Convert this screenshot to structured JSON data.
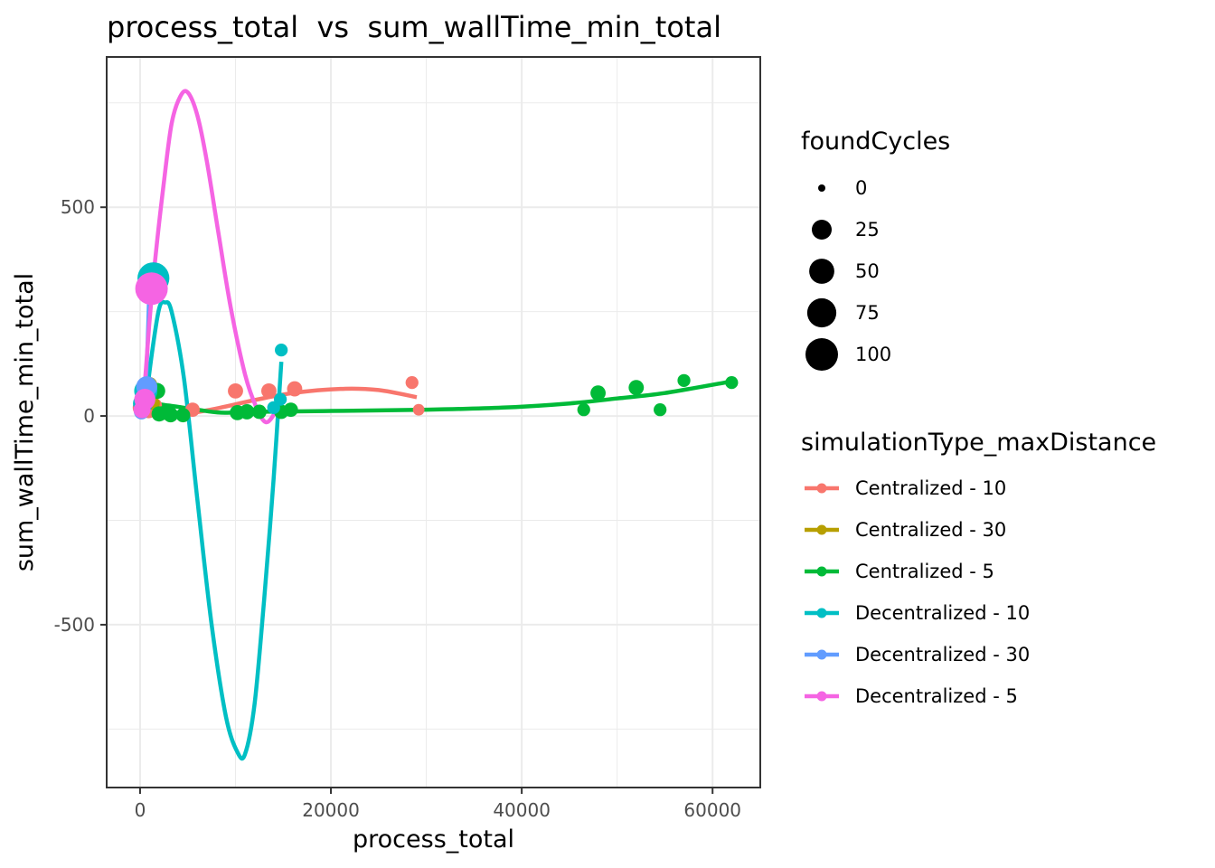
{
  "chart_data": {
    "type": "scatter",
    "title": "process_total  vs  sum_wallTime_min_total",
    "xlabel": "process_total",
    "ylabel": "sum_wallTime_min_total",
    "xlim": [
      -3500,
      65000
    ],
    "ylim": [
      -890,
      860
    ],
    "x_ticks": [
      0,
      20000,
      40000,
      60000
    ],
    "x_tick_labels": [
      "0",
      "20000",
      "40000",
      "60000"
    ],
    "y_ticks": [
      -500,
      0,
      500
    ],
    "y_tick_labels": [
      "-500",
      "0",
      "500"
    ],
    "grid": true,
    "legend_placement": "right",
    "size_legend": {
      "title": "foundCycles",
      "entries": [
        {
          "label": "0",
          "value": 0
        },
        {
          "label": "25",
          "value": 25
        },
        {
          "label": "50",
          "value": 50
        },
        {
          "label": "75",
          "value": 75
        },
        {
          "label": "100",
          "value": 100
        }
      ]
    },
    "color_legend_title": "simulationType_maxDistance",
    "series": [
      {
        "name": "Centralized - 10",
        "color": "#F8766D",
        "points": [
          {
            "x": 200,
            "y": 20,
            "size": 20
          },
          {
            "x": 500,
            "y": 30,
            "size": 35
          },
          {
            "x": 900,
            "y": 15,
            "size": 15
          },
          {
            "x": 1500,
            "y": 25,
            "size": 10
          },
          {
            "x": 5500,
            "y": 15,
            "size": 8
          },
          {
            "x": 10000,
            "y": 60,
            "size": 10
          },
          {
            "x": 13500,
            "y": 60,
            "size": 10
          },
          {
            "x": 16200,
            "y": 65,
            "size": 10
          },
          {
            "x": 28500,
            "y": 80,
            "size": 5
          },
          {
            "x": 29200,
            "y": 15,
            "size": 3
          }
        ],
        "curve": [
          [
            0,
            30
          ],
          [
            2000,
            15
          ],
          [
            4500,
            5
          ],
          [
            8000,
            18
          ],
          [
            12000,
            38
          ],
          [
            16000,
            55
          ],
          [
            21000,
            65
          ],
          [
            25000,
            62
          ],
          [
            29000,
            45
          ]
        ]
      },
      {
        "name": "Centralized - 30",
        "color": "#B79F00",
        "points": [
          {
            "x": 300,
            "y": 40,
            "size": 15
          },
          {
            "x": 700,
            "y": 60,
            "size": 20
          },
          {
            "x": 1000,
            "y": 75,
            "size": 10
          },
          {
            "x": 1400,
            "y": 30,
            "size": 5
          }
        ],
        "curve": [
          [
            100,
            50
          ],
          [
            400,
            55
          ],
          [
            800,
            60
          ],
          [
            1200,
            50
          ],
          [
            1500,
            35
          ]
        ]
      },
      {
        "name": "Centralized - 5",
        "color": "#00BA38",
        "points": [
          {
            "x": 1800,
            "y": 60,
            "size": 12
          },
          {
            "x": 2000,
            "y": 5,
            "size": 10
          },
          {
            "x": 2600,
            "y": 8,
            "size": 8
          },
          {
            "x": 3200,
            "y": 3,
            "size": 10
          },
          {
            "x": 4500,
            "y": 2,
            "size": 8
          },
          {
            "x": 10200,
            "y": 8,
            "size": 10
          },
          {
            "x": 11200,
            "y": 10,
            "size": 10
          },
          {
            "x": 12500,
            "y": 10,
            "size": 8
          },
          {
            "x": 14800,
            "y": 10,
            "size": 8
          },
          {
            "x": 15800,
            "y": 15,
            "size": 8
          },
          {
            "x": 46500,
            "y": 15,
            "size": 5
          },
          {
            "x": 48000,
            "y": 55,
            "size": 10
          },
          {
            "x": 52000,
            "y": 68,
            "size": 10
          },
          {
            "x": 54500,
            "y": 15,
            "size": 5
          },
          {
            "x": 57000,
            "y": 85,
            "size": 5
          },
          {
            "x": 62000,
            "y": 80,
            "size": 5
          }
        ],
        "curve": [
          [
            500,
            20
          ],
          [
            1500,
            28
          ],
          [
            3000,
            25
          ],
          [
            6000,
            15
          ],
          [
            8500,
            8
          ],
          [
            12000,
            10
          ],
          [
            20000,
            12
          ],
          [
            30000,
            15
          ],
          [
            38000,
            20
          ],
          [
            45000,
            30
          ],
          [
            50000,
            42
          ],
          [
            55000,
            55
          ],
          [
            62000,
            83
          ]
        ]
      },
      {
        "name": "Decentralized - 10",
        "color": "#00BFC4",
        "points": [
          {
            "x": 1400,
            "y": 330,
            "size": 95
          },
          {
            "x": 600,
            "y": 60,
            "size": 40
          },
          {
            "x": 300,
            "y": 30,
            "size": 25
          },
          {
            "x": 14700,
            "y": 40,
            "size": 5
          },
          {
            "x": 14800,
            "y": 158,
            "size": 5
          },
          {
            "x": 14000,
            "y": 20,
            "size": 5
          }
        ],
        "curve": [
          [
            600,
            35
          ],
          [
            1300,
            160
          ],
          [
            2000,
            258
          ],
          [
            2600,
            272
          ],
          [
            3300,
            250
          ],
          [
            4600,
            90
          ],
          [
            6000,
            -200
          ],
          [
            7500,
            -500
          ],
          [
            9000,
            -720
          ],
          [
            10200,
            -805
          ],
          [
            11000,
            -810
          ],
          [
            12000,
            -690
          ],
          [
            13000,
            -440
          ],
          [
            14000,
            -150
          ],
          [
            14800,
            130
          ]
        ]
      },
      {
        "name": "Decentralized - 30",
        "color": "#619CFF",
        "points": [
          {
            "x": 700,
            "y": 70,
            "size": 30
          },
          {
            "x": 400,
            "y": 40,
            "size": 20
          },
          {
            "x": 150,
            "y": 10,
            "size": 10
          }
        ],
        "curve": [
          [
            150,
            10
          ],
          [
            400,
            30
          ],
          [
            600,
            80
          ],
          [
            800,
            180
          ],
          [
            950,
            290
          ]
        ]
      },
      {
        "name": "Decentralized - 5",
        "color": "#F564E3",
        "points": [
          {
            "x": 1200,
            "y": 305,
            "size": 100
          },
          {
            "x": 500,
            "y": 40,
            "size": 30
          },
          {
            "x": 200,
            "y": 15,
            "size": 15
          }
        ],
        "curve": [
          [
            100,
            10
          ],
          [
            500,
            80
          ],
          [
            1000,
            230
          ],
          [
            1700,
            400
          ],
          [
            2500,
            560
          ],
          [
            3300,
            700
          ],
          [
            4200,
            765
          ],
          [
            5000,
            775
          ],
          [
            6000,
            720
          ],
          [
            7000,
            610
          ],
          [
            8200,
            440
          ],
          [
            9500,
            260
          ],
          [
            11000,
            100
          ],
          [
            12200,
            20
          ],
          [
            13200,
            -15
          ],
          [
            14200,
            10
          ],
          [
            14800,
            40
          ]
        ]
      }
    ]
  }
}
